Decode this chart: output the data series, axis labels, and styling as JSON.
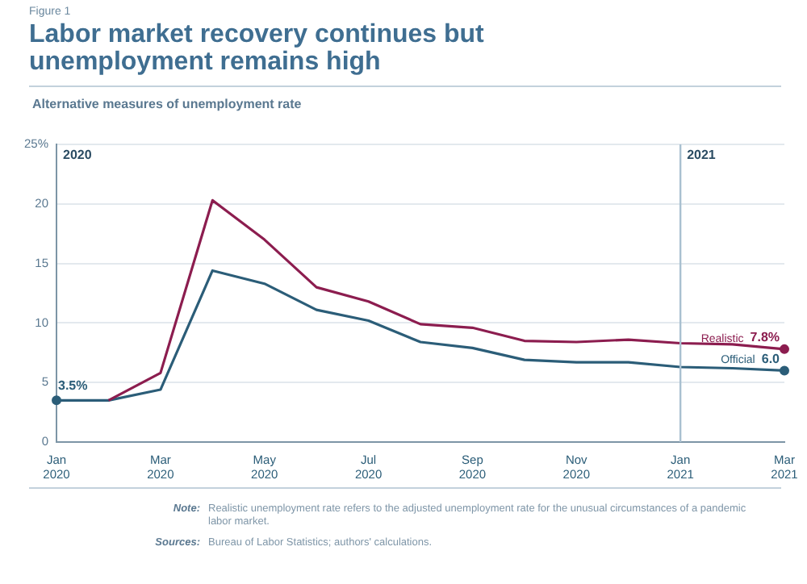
{
  "chart_data": {
    "type": "line",
    "title": "Labor market recovery continues but unemployment remains high",
    "subtitle": "Alternative measures of unemployment rate",
    "annotations": [
      "Figure 1",
      "2020",
      "Note: Realistic unemployment rate refers to the adjusted unemployment rate for the unusual circumstances of a pandemic labor market.",
      "Sources: Bureau of Labor Statistics; authors' calculations."
    ],
    "categories": [
      "Jan 2020",
      null,
      "Mar 2020",
      null,
      "May 2020",
      null,
      "Jul 2020",
      null,
      "Sep 2020",
      null,
      "Nov 2020",
      null,
      "Jan 2021",
      null,
      "Mar 2021"
    ],
    "series": [
      {
        "name": "Realistic",
        "color": "#8c1d4f",
        "values": [
          null,
          3.5,
          5.8,
          20.3,
          17.0,
          13.0,
          11.8,
          9.9,
          9.6,
          8.5,
          8.4,
          8.6,
          8.3,
          8.2,
          7.8
        ],
        "value_labels": [
          null,
          null,
          null,
          null,
          null,
          null,
          null,
          null,
          null,
          null,
          null,
          null,
          null,
          null,
          "7.8%"
        ]
      },
      {
        "name": "Official",
        "color": "#2b5d78",
        "values": [
          3.5,
          3.5,
          4.4,
          14.4,
          13.3,
          11.1,
          10.2,
          8.4,
          7.9,
          6.9,
          6.7,
          6.7,
          6.3,
          6.2,
          6.0
        ],
        "value_labels": [
          "3.5%",
          null,
          null,
          null,
          null,
          null,
          null,
          null,
          null,
          null,
          null,
          null,
          null,
          null,
          "6.0"
        ]
      }
    ],
    "ylim": [
      0,
      25
    ],
    "yticks": [
      0,
      5,
      10,
      15,
      {
        "value": 25,
        "label": "25%"
      },
      20
    ],
    "ref_lines": [
      {
        "axis": "x",
        "value": "Jan 2021",
        "color": "#a9c0d0",
        "label": "2021"
      }
    ],
    "grid": "y",
    "legend": false,
    "marker": "none",
    "line_style": "solid"
  }
}
